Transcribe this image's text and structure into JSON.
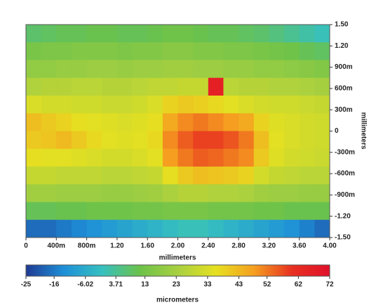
{
  "chart_data": {
    "type": "heatmap",
    "xlabel": "millimeters",
    "ylabel": "millimeters",
    "colorbar_label": "micrometers",
    "xlim": [
      0,
      4
    ],
    "ylim": [
      -1.5,
      1.5
    ],
    "clim": [
      -25,
      72
    ],
    "xticks": [
      0,
      {
        "value": 0.4,
        "label": "400m"
      },
      {
        "value": 0.8,
        "label": "800m"
      },
      {
        "value": 1.2,
        "label": "1.20"
      },
      {
        "value": 1.6,
        "label": "1.60"
      },
      {
        "value": 2,
        "label": "2.00"
      },
      {
        "value": 2.4,
        "label": "2.40"
      },
      {
        "value": 2.8,
        "label": "2.80"
      },
      {
        "value": 3.2,
        "label": "3.20"
      },
      {
        "value": 3.6,
        "label": "3.60"
      },
      {
        "value": 4,
        "label": "4.00"
      }
    ],
    "yticks": [
      {
        "value": 1.5,
        "label": "1.50"
      },
      {
        "value": 1.2,
        "label": "1.20"
      },
      {
        "value": 0.9,
        "label": "900m"
      },
      {
        "value": 0.6,
        "label": "600m"
      },
      {
        "value": 0.3,
        "label": "300m"
      },
      0,
      {
        "value": -0.3,
        "label": "-300m"
      },
      {
        "value": -0.6,
        "label": "-600m"
      },
      {
        "value": -0.9,
        "label": "-900m"
      },
      {
        "value": -1.2,
        "label": "-1.20"
      },
      {
        "value": -1.5,
        "label": "-1.50"
      }
    ],
    "cticks": [
      -25,
      -16,
      -6.02,
      3.71,
      13,
      23,
      33,
      43,
      52,
      62,
      72
    ],
    "colormap": [
      "#1f3a93",
      "#1e90d8",
      "#36c0c0",
      "#6cc24a",
      "#a8d040",
      "#e6e020",
      "#f5a020",
      "#e83020",
      "#e0102a"
    ],
    "z": [
      [
        8,
        9,
        10,
        10,
        11,
        11,
        10,
        10,
        11,
        12,
        12,
        11,
        10,
        10,
        9,
        8,
        6,
        4,
        2,
        0
      ],
      [
        14,
        15,
        15,
        16,
        16,
        16,
        15,
        16,
        16,
        17,
        17,
        16,
        16,
        15,
        15,
        14,
        13,
        12,
        10,
        9
      ],
      [
        19,
        19,
        20,
        20,
        21,
        21,
        20,
        21,
        21,
        22,
        22,
        21,
        21,
        20,
        20,
        19,
        19,
        18,
        17,
        16
      ],
      [
        25,
        26,
        26,
        27,
        27,
        26,
        26,
        27,
        28,
        28,
        29,
        29,
        66,
        27,
        26,
        26,
        25,
        25,
        24,
        23
      ],
      [
        33,
        32,
        32,
        31,
        31,
        30,
        30,
        31,
        33,
        38,
        40,
        39,
        37,
        35,
        33,
        32,
        31,
        31,
        30,
        29
      ],
      [
        42,
        40,
        38,
        36,
        35,
        34,
        33,
        34,
        36,
        46,
        50,
        52,
        50,
        48,
        46,
        38,
        34,
        33,
        32,
        31
      ],
      [
        40,
        41,
        43,
        40,
        37,
        35,
        34,
        35,
        37,
        50,
        55,
        58,
        58,
        56,
        52,
        42,
        35,
        33,
        32,
        31
      ],
      [
        36,
        35,
        35,
        34,
        33,
        32,
        32,
        33,
        35,
        48,
        52,
        55,
        54,
        52,
        50,
        40,
        34,
        32,
        31,
        30
      ],
      [
        29,
        29,
        28,
        28,
        28,
        27,
        27,
        28,
        29,
        36,
        40,
        42,
        41,
        40,
        38,
        32,
        29,
        28,
        27,
        27
      ],
      [
        22,
        22,
        21,
        21,
        21,
        20,
        20,
        21,
        22,
        24,
        26,
        26,
        25,
        25,
        24,
        22,
        21,
        21,
        20,
        20
      ],
      [
        10,
        10,
        11,
        11,
        12,
        12,
        12,
        13,
        13,
        14,
        14,
        14,
        13,
        13,
        13,
        12,
        12,
        11,
        11,
        11
      ],
      [
        -18,
        -18,
        -16,
        -14,
        -12,
        -10,
        -8,
        -6,
        -4,
        -2,
        0,
        0,
        -2,
        -4,
        -6,
        -8,
        -10,
        -12,
        -15,
        -18
      ]
    ]
  }
}
